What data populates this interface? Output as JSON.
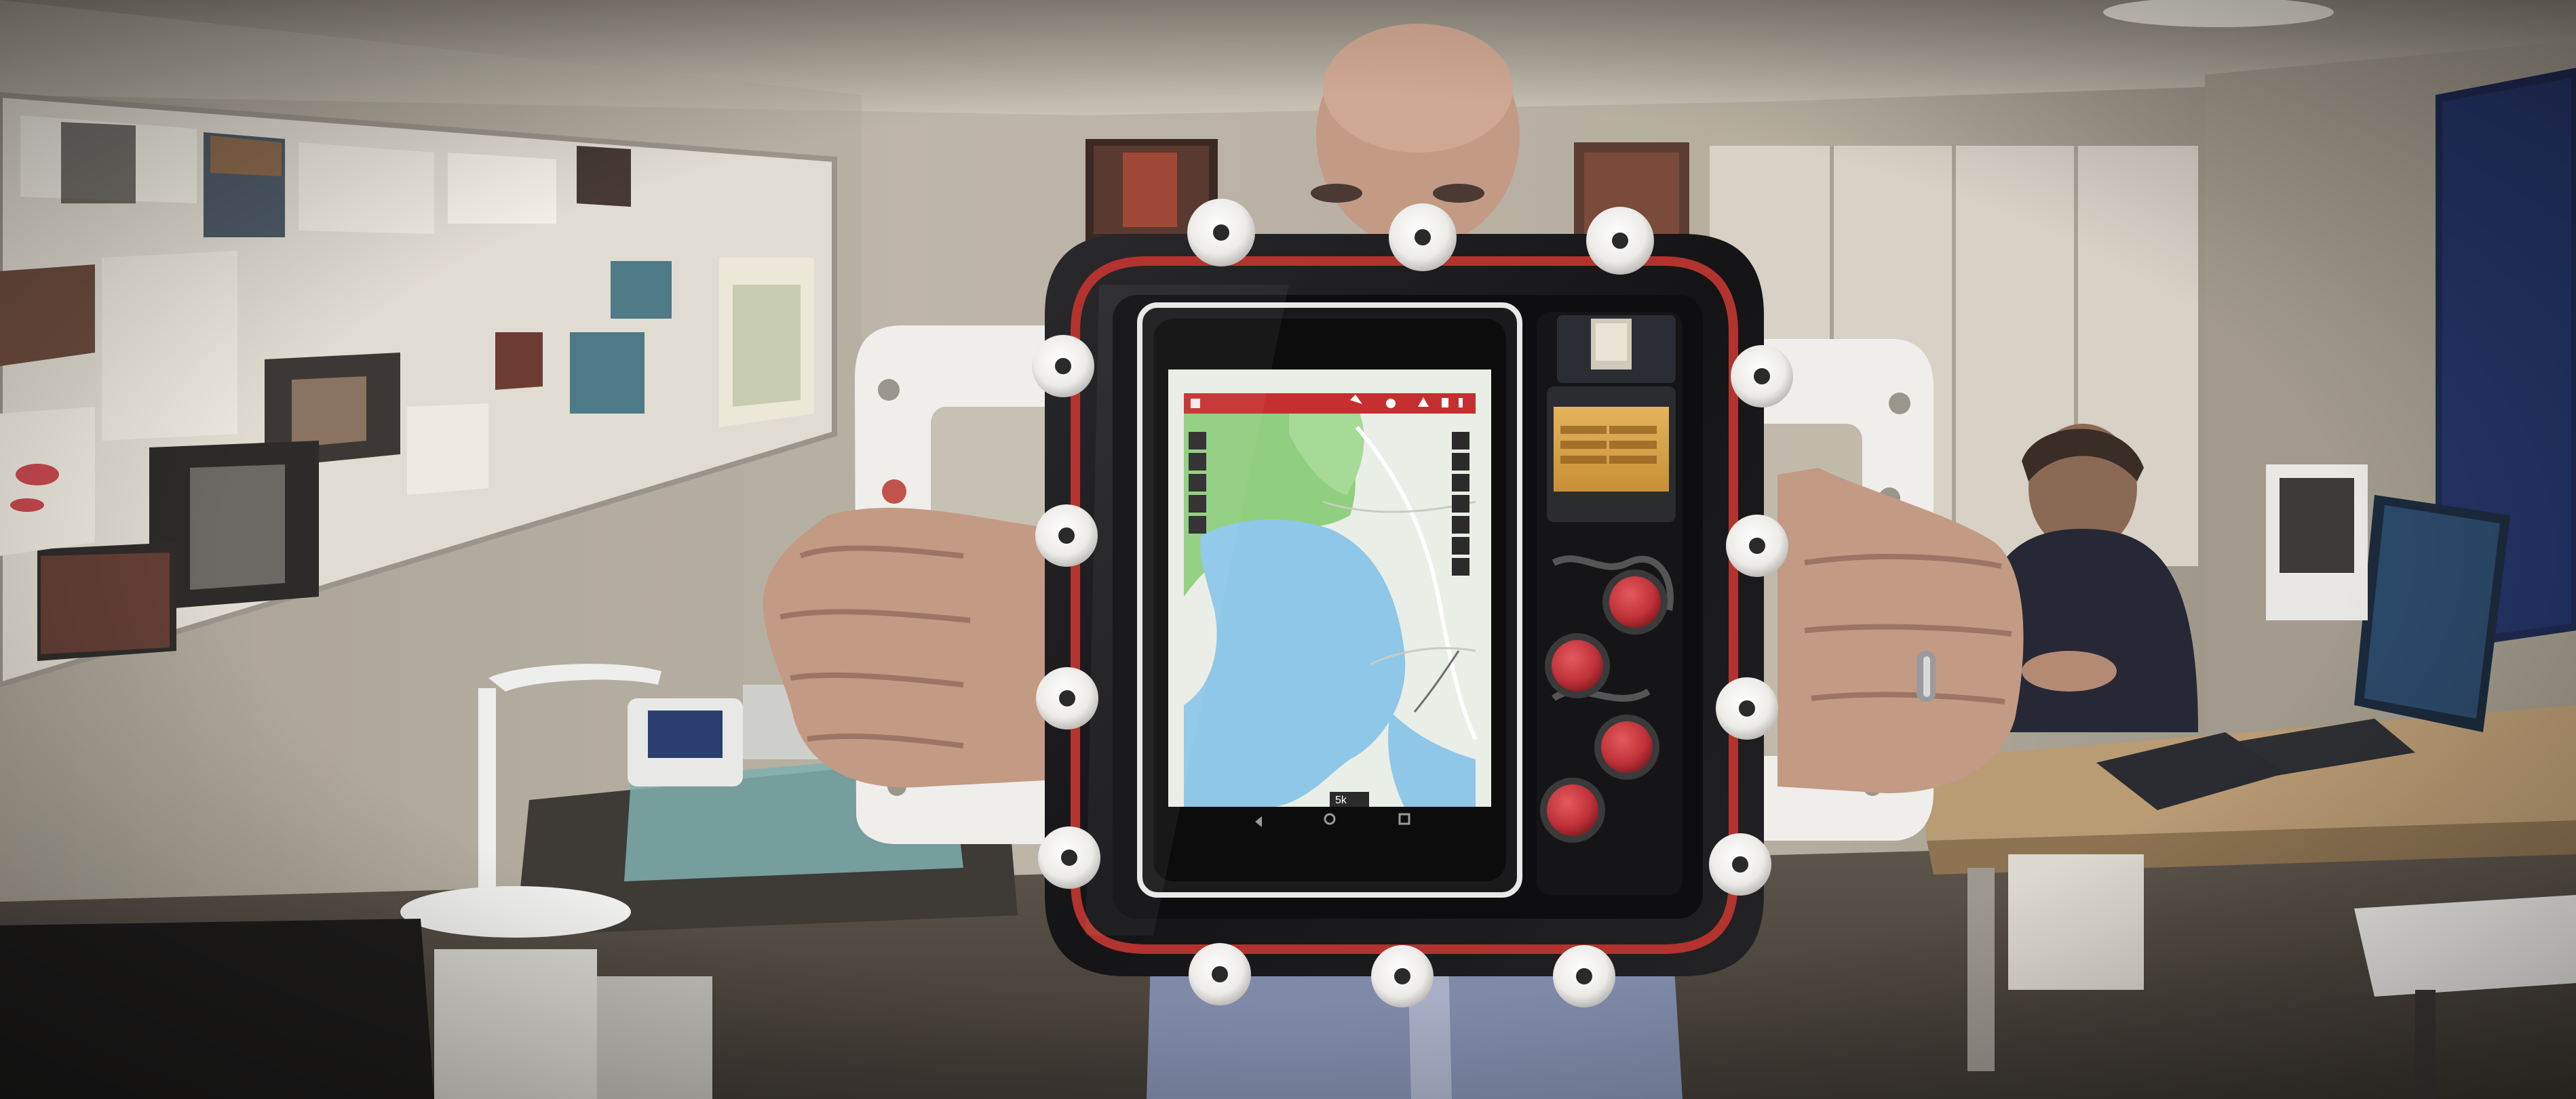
{
  "scene": {
    "colors": {
      "wall": "#b9b2a5",
      "wall_shadow": "#8d877c",
      "ceiling": "#cfc9bd",
      "board": "#e3ded3",
      "housing": "#1c1c1e",
      "gasket": "#b3332e",
      "handles": "#eeeeec",
      "knobs": "#f2f2f0",
      "buttons": "#c8343a",
      "map_land": "#e9eee6",
      "map_water": "#8ec7e8",
      "map_green": "#8fcf7f",
      "app_bar": "#c62f2f",
      "lcd": "#d7a246",
      "desk": "#b79a74",
      "shirt": "#7f8aa8",
      "skin": "#c9a089"
    },
    "map_app": {
      "scale_label": "5k"
    }
  }
}
